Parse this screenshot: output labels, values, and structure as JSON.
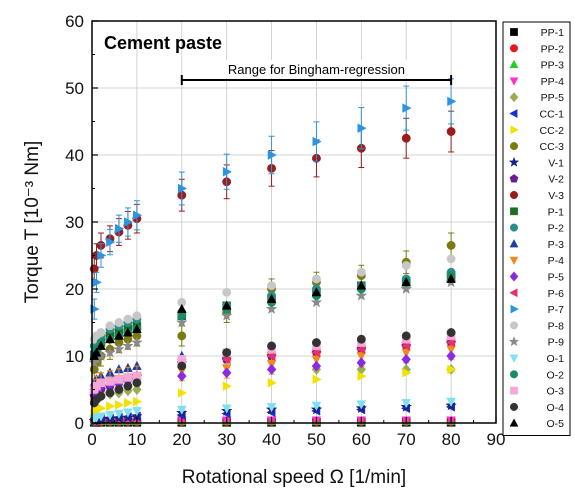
{
  "chart_data": {
    "type": "scatter",
    "title": "Cement paste",
    "xlabel": "Rotational speed Ω [1/min]",
    "ylabel": "Torque T [10⁻³ Nm]",
    "xlim": [
      0,
      90
    ],
    "ylim": [
      0,
      60
    ],
    "x_ticks": [
      0,
      10,
      20,
      30,
      40,
      50,
      60,
      70,
      80,
      90
    ],
    "y_ticks": [
      0,
      10,
      20,
      30,
      40,
      50,
      60
    ],
    "grid": true,
    "legend_position": "right",
    "annotation": {
      "text": "Range for Bingham-regression",
      "x_from": 20,
      "x_to": 80
    },
    "low_x": [
      0.5,
      1,
      2,
      4,
      6,
      8,
      10
    ],
    "high_x": [
      20,
      30,
      40,
      50,
      60,
      70,
      80
    ],
    "series": [
      {
        "name": "PP-1",
        "color": "#000000",
        "marker": "square",
        "low": [
          0.1,
          0.1,
          0.1,
          0.1,
          0.1,
          0.1,
          0.1
        ],
        "high": [
          0.1,
          0.1,
          0.1,
          0.1,
          0.1,
          0.1,
          0.1
        ]
      },
      {
        "name": "PP-2",
        "color": "#e41a1c",
        "marker": "circle",
        "low": [
          0.2,
          0.2,
          0.2,
          0.2,
          0.2,
          0.2,
          0.2
        ],
        "high": [
          0.2,
          0.2,
          0.2,
          0.2,
          0.2,
          0.2,
          0.2
        ]
      },
      {
        "name": "PP-3",
        "color": "#22cc22",
        "marker": "triangle-up",
        "low": [
          0.3,
          0.3,
          0.3,
          0.3,
          0.3,
          0.3,
          0.3
        ],
        "high": [
          0.3,
          0.3,
          0.3,
          0.3,
          0.3,
          0.3,
          0.3
        ]
      },
      {
        "name": "PP-4",
        "color": "#ff33cc",
        "marker": "triangle-down",
        "low": [
          0.4,
          0.4,
          0.4,
          0.4,
          0.4,
          0.4,
          0.4
        ],
        "high": [
          0.4,
          0.4,
          0.4,
          0.4,
          0.4,
          0.4,
          0.4
        ]
      },
      {
        "name": "PP-5",
        "color": "#9aac52",
        "marker": "diamond",
        "low": [
          3.5,
          3.8,
          4,
          4.3,
          4.5,
          4.8,
          5
        ],
        "high": [
          7,
          7.5,
          8,
          8,
          8,
          8,
          8
        ]
      },
      {
        "name": "CC-1",
        "color": "#1a2fd6",
        "marker": "triangle-left",
        "low": [
          0.5,
          0.5,
          0.6,
          0.7,
          0.8,
          0.9,
          1
        ],
        "high": [
          1.2,
          1.4,
          1.6,
          1.8,
          2,
          2.2,
          2.4
        ]
      },
      {
        "name": "CC-2",
        "color": "#f2e200",
        "marker": "triangle-right",
        "low": [
          1.5,
          2,
          2.2,
          2.5,
          2.7,
          3,
          3.2
        ],
        "high": [
          4.5,
          5.5,
          6,
          6.5,
          7,
          7.5,
          8
        ]
      },
      {
        "name": "CC-3",
        "color": "#7c7a10",
        "marker": "circle",
        "low": [
          8,
          9,
          10,
          11,
          12,
          12.5,
          13
        ],
        "high": [
          13,
          16.5,
          20,
          21,
          22,
          24,
          26.5
        ]
      },
      {
        "name": "V-1",
        "color": "#1a237e",
        "marker": "star",
        "low": [
          0.3,
          0.4,
          0.5,
          0.6,
          0.7,
          0.8,
          1
        ],
        "high": [
          1.5,
          1.8,
          2,
          2,
          2.2,
          2.4,
          2.6
        ]
      },
      {
        "name": "V-2",
        "color": "#6a1b9a",
        "marker": "pentagon",
        "low": [
          4,
          4.5,
          5,
          5.5,
          6,
          6.5,
          7
        ],
        "high": [
          9,
          9.5,
          10,
          10.5,
          11,
          11.5,
          12
        ]
      },
      {
        "name": "V-3",
        "color": "#9b1c1c",
        "marker": "circle",
        "low": [
          23,
          25,
          26.5,
          27.5,
          28.5,
          29.5,
          30.5
        ],
        "high": [
          34,
          36,
          38,
          39.5,
          41,
          42.5,
          43.5
        ]
      },
      {
        "name": "P-1",
        "color": "#1b6e20",
        "marker": "square",
        "low": [
          10,
          11,
          12,
          13,
          13.5,
          14,
          14.5
        ],
        "high": [
          16,
          17.5,
          18.5,
          19.5,
          20.5,
          21,
          22
        ]
      },
      {
        "name": "P-2",
        "color": "#2a8c8c",
        "marker": "circle",
        "low": [
          11.5,
          12,
          13,
          14,
          14.5,
          15,
          15.5
        ],
        "high": [
          16.5,
          17.5,
          19,
          20,
          20.5,
          21.5,
          22.5
        ]
      },
      {
        "name": "P-3",
        "color": "#1a3ea8",
        "marker": "triangle-up",
        "low": [
          6,
          6.5,
          7,
          7.5,
          8,
          8.2,
          8.5
        ],
        "high": [
          10,
          10.5,
          11,
          11.5,
          12,
          12.5,
          13
        ]
      },
      {
        "name": "P-4",
        "color": "#f28b1c",
        "marker": "triangle-down",
        "low": [
          5,
          5.5,
          6,
          6.3,
          6.6,
          6.8,
          7
        ],
        "high": [
          7.8,
          8.2,
          8.8,
          9.5,
          10,
          10.5,
          11
        ]
      },
      {
        "name": "P-5",
        "color": "#8a2be2",
        "marker": "diamond",
        "low": [
          4.5,
          5,
          5.5,
          5.8,
          6,
          6.3,
          6.5
        ],
        "high": [
          7,
          7.5,
          8,
          8.5,
          9,
          9.5,
          10
        ]
      },
      {
        "name": "P-6",
        "color": "#e8306a",
        "marker": "triangle-left",
        "low": [
          5,
          5.5,
          6,
          6.3,
          6.5,
          6.8,
          7
        ],
        "high": [
          9,
          9.5,
          10,
          10.5,
          11,
          11.5,
          12
        ]
      },
      {
        "name": "P-7",
        "color": "#2b95e0",
        "marker": "triangle-right",
        "low": [
          17,
          21,
          25,
          27,
          29,
          30,
          31
        ],
        "high": [
          35,
          37.5,
          40,
          42,
          44,
          47,
          48
        ]
      },
      {
        "name": "P-8",
        "color": "#c7c7c7",
        "marker": "circle",
        "low": [
          12.5,
          13,
          13.5,
          14.5,
          15,
          15.5,
          16
        ],
        "high": [
          18,
          19.5,
          20.5,
          21.5,
          22.5,
          23.5,
          24.5
        ]
      },
      {
        "name": "P-9",
        "color": "#8a8a8a",
        "marker": "star",
        "low": [
          9,
          9.5,
          10,
          10.5,
          11,
          11.5,
          12
        ],
        "high": [
          15,
          16,
          17,
          18,
          19,
          20,
          21
        ]
      },
      {
        "name": "O-1",
        "color": "#7fe0f2",
        "marker": "triangle-down",
        "low": [
          0.6,
          0.8,
          1,
          1.2,
          1.4,
          1.6,
          1.8
        ],
        "high": [
          2,
          2.2,
          2.4,
          2.6,
          2.8,
          3,
          3.2
        ]
      },
      {
        "name": "O-2",
        "color": "#1b8a6b",
        "marker": "circle",
        "low": [
          10.5,
          11,
          12,
          12.5,
          13,
          13.5,
          14
        ],
        "high": [
          16,
          17,
          18,
          19,
          20,
          21,
          22
        ]
      },
      {
        "name": "O-3",
        "color": "#f5a8d8",
        "marker": "square",
        "low": [
          5,
          5.5,
          6,
          6.2,
          6.5,
          6.8,
          7
        ],
        "high": [
          9.5,
          10.5,
          11,
          11.5,
          12,
          12.5,
          13
        ]
      },
      {
        "name": "O-4",
        "color": "#333333",
        "marker": "circle",
        "low": [
          3,
          3.5,
          4,
          4.5,
          5,
          5.5,
          6
        ],
        "high": [
          8.5,
          10.5,
          11.5,
          12,
          12.5,
          13,
          13.5
        ]
      },
      {
        "name": "O-5",
        "color": "#000000",
        "marker": "triangle-up",
        "low": [
          10,
          10.5,
          11.5,
          12.5,
          13,
          13.5,
          14
        ],
        "high": [
          17,
          17.5,
          18.5,
          19.5,
          20.5,
          21,
          21.5
        ]
      }
    ],
    "error_series": [
      "V-3",
      "P-7",
      "CC-3",
      "P-4"
    ]
  }
}
